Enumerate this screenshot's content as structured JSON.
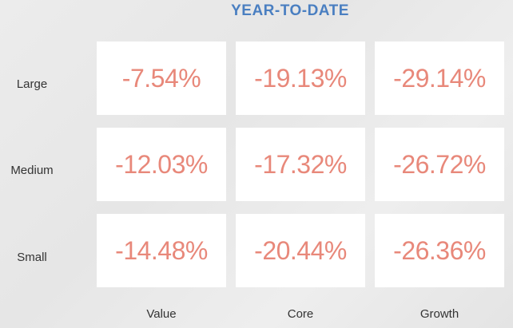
{
  "chart_data": {
    "type": "heatmap",
    "title": "YEAR-TO-DATE",
    "rows": [
      "Large",
      "Medium",
      "Small"
    ],
    "columns": [
      "Value",
      "Core",
      "Growth"
    ],
    "values": [
      [
        -7.54,
        -19.13,
        -29.14
      ],
      [
        -12.03,
        -17.32,
        -26.72
      ],
      [
        -14.48,
        -20.44,
        -26.36
      ]
    ],
    "labels": [
      [
        "-7.54%",
        "-19.13%",
        "-29.14%"
      ],
      [
        "-12.03%",
        "-17.32%",
        "-26.72%"
      ],
      [
        "-14.48%",
        "-20.44%",
        "-26.36%"
      ]
    ],
    "colors": {
      "title": "#4a7fc1",
      "value_text": "#e8887a",
      "cell_background": "#ffffff"
    }
  }
}
